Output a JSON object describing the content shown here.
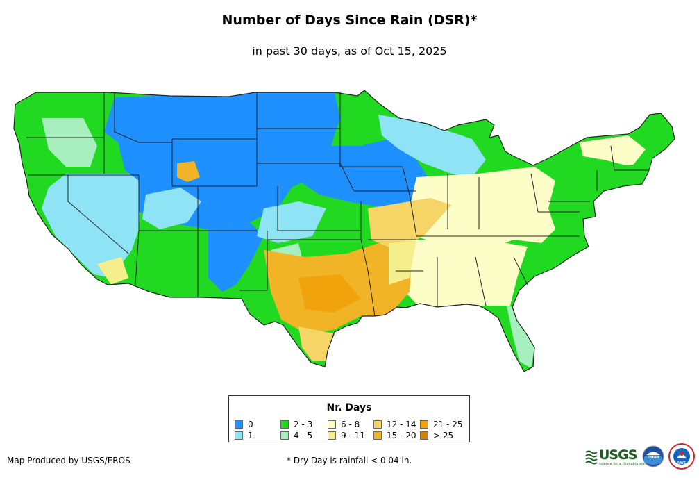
{
  "title": "Number of Days Since Rain (DSR)*",
  "subtitle": "in past 30 days, as of Oct 15, 2025",
  "legend": {
    "title": "Nr. Days",
    "items": [
      {
        "label": "0",
        "color": "#1e90ff"
      },
      {
        "label": "1",
        "color": "#8ee3f5"
      },
      {
        "label": "2 - 3",
        "color": "#22d922"
      },
      {
        "label": "4 - 5",
        "color": "#a8efc0"
      },
      {
        "label": "6 - 8",
        "color": "#fdfdc8"
      },
      {
        "label": "9 - 11",
        "color": "#f4ee8c"
      },
      {
        "label": "12 - 14",
        "color": "#f5d565"
      },
      {
        "label": "15 - 20",
        "color": "#f0b426"
      },
      {
        "label": "21 - 25",
        "color": "#f0a30a"
      },
      {
        "label": "> 25",
        "color": "#cd8508"
      }
    ]
  },
  "credit": "Map Produced by USGS/EROS",
  "footnote": "* Dry Day is rainfall < 0.04 in.",
  "logos": {
    "usgs_text": "USGS",
    "usgs_tagline": "science for a changing world",
    "noaa_text": "noaa",
    "nws_text": "NWS"
  }
}
